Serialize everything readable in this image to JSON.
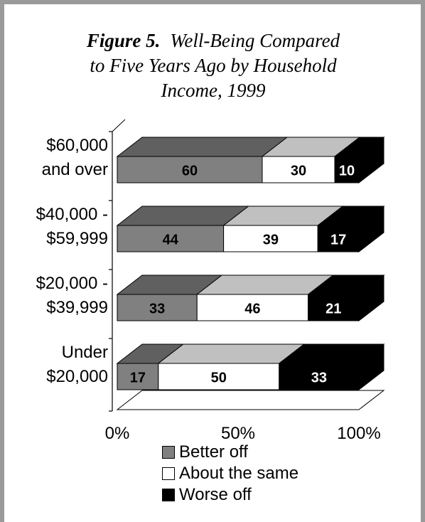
{
  "figure": {
    "label": "Figure 5.",
    "title_line1": "Well-Being Compared",
    "title_line2": "to Five Years Ago by Household",
    "title_line3": "Income, 1999"
  },
  "colors": {
    "better": "#808080",
    "better_top": "#606060",
    "same": "#ffffff",
    "same_top": "#c0c0c0",
    "worse": "#000000",
    "worse_top": "#000000",
    "frame": "#9a9a9a"
  },
  "chart_data": {
    "type": "bar",
    "orientation": "horizontal",
    "stacked": "percent",
    "three_d": true,
    "categories": [
      [
        "$60,000",
        "and over"
      ],
      [
        "$40,000 -",
        "$59,999"
      ],
      [
        "$20,000 -",
        "$39,999"
      ],
      [
        "Under",
        "$20,000"
      ]
    ],
    "series": [
      {
        "name": "Better off",
        "values": [
          60,
          44,
          33,
          17
        ]
      },
      {
        "name": "About the same",
        "values": [
          30,
          39,
          46,
          50
        ]
      },
      {
        "name": "Worse off",
        "values": [
          10,
          17,
          21,
          33
        ]
      }
    ],
    "xlim": [
      0,
      100
    ],
    "x_ticks": [
      "0%",
      "50%",
      "100%"
    ],
    "legend_position": "bottom"
  }
}
